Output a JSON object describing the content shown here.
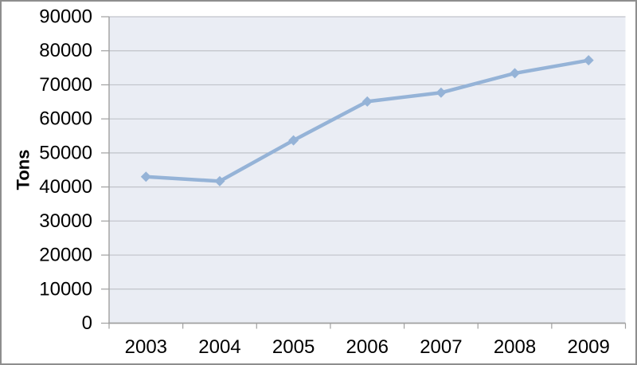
{
  "chart_data": {
    "type": "line",
    "title": "",
    "xlabel": "",
    "ylabel": "Tons",
    "categories": [
      "2003",
      "2004",
      "2005",
      "2006",
      "2007",
      "2008",
      "2009"
    ],
    "values": [
      43000,
      41700,
      53700,
      65100,
      67700,
      73400,
      77200
    ],
    "ylim": [
      0,
      90000
    ],
    "ytick_step": 10000,
    "ytick_labels": [
      "0",
      "10000",
      "20000",
      "30000",
      "40000",
      "50000",
      "60000",
      "70000",
      "80000",
      "90000"
    ],
    "grid": "horizontal",
    "legend": "none",
    "marker": "diamond",
    "colors": {
      "line": "#95B3D7",
      "marker": "#95B3D7",
      "plot_background": "#EAEDF4",
      "gridline": "#C0C3C9",
      "axis": "#A0A0A0",
      "text": "#000000",
      "frame_border": "#8E8E8E"
    }
  }
}
